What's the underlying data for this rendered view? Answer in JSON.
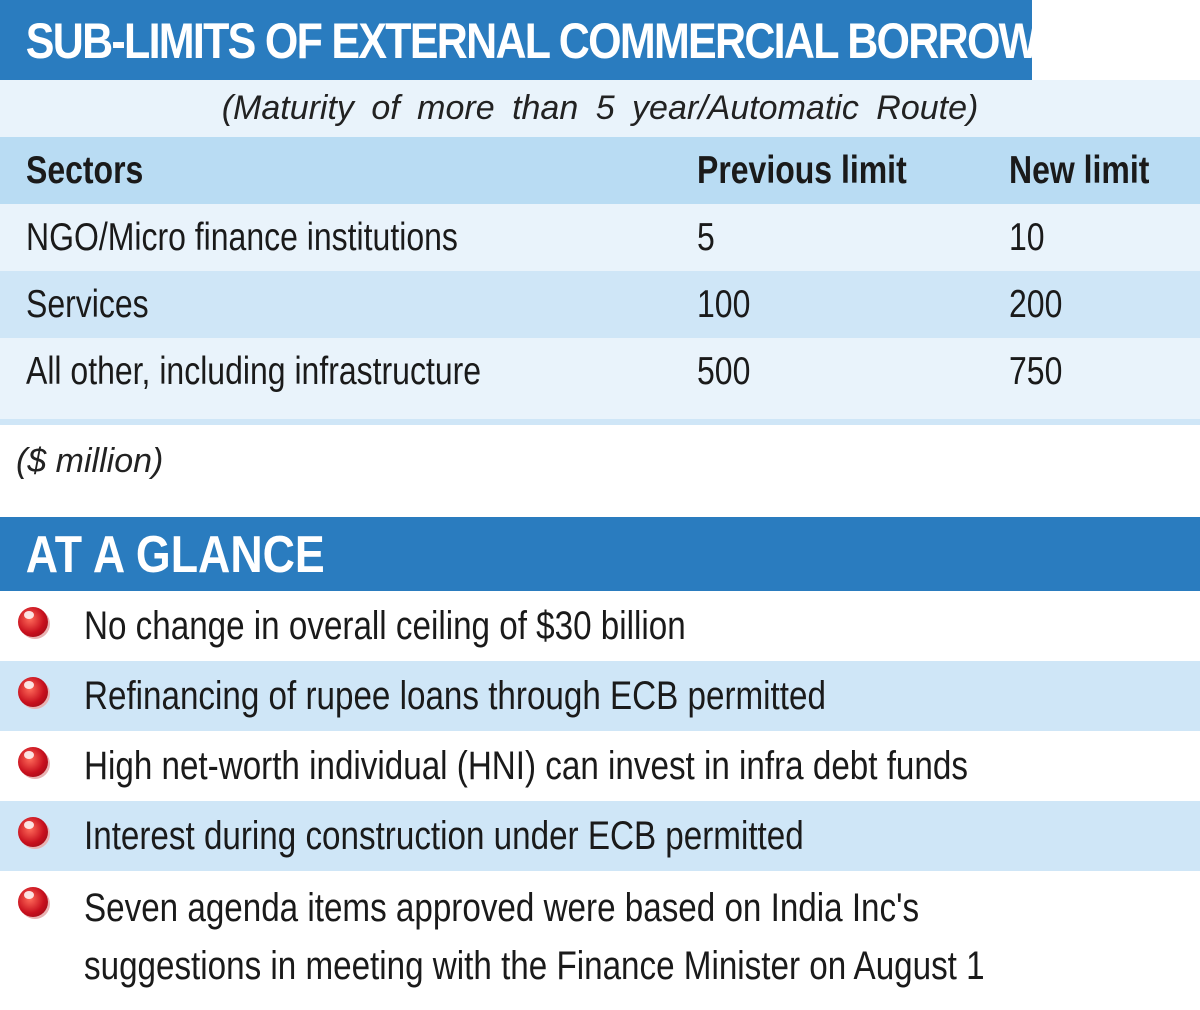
{
  "header": {
    "title": "SUB-LIMITS OF EXTERNAL COMMERCIAL BORROWING",
    "subtitle": "(Maturity of more than 5 year/Automatic Route)"
  },
  "table": {
    "columns": [
      "Sectors",
      "Previous limit",
      "New limit"
    ],
    "rows": [
      [
        "NGO/Micro finance institutions",
        "5",
        "10"
      ],
      [
        "Services",
        "100",
        "200"
      ],
      [
        "All other, including infrastructure",
        "500",
        "750"
      ]
    ],
    "unit_note": "($ million)"
  },
  "glance": {
    "title": "AT A GLANCE",
    "items": [
      "No change in overall ceiling of $30 billion",
      "Refinancing of rupee loans through ECB permitted",
      "High net-worth individual (HNI) can invest in infra debt funds",
      "Interest during construction under ECB permitted",
      "Seven agenda items approved were based on India Inc's",
      "suggestions in meeting with the Finance Minister on August 1"
    ]
  },
  "colors": {
    "banner": "#2a7cbf",
    "row_light": "#e9f3fb",
    "row_mid": "#cfe6f7",
    "header_row": "#b9dcf3",
    "bullet": "#c8101e"
  }
}
